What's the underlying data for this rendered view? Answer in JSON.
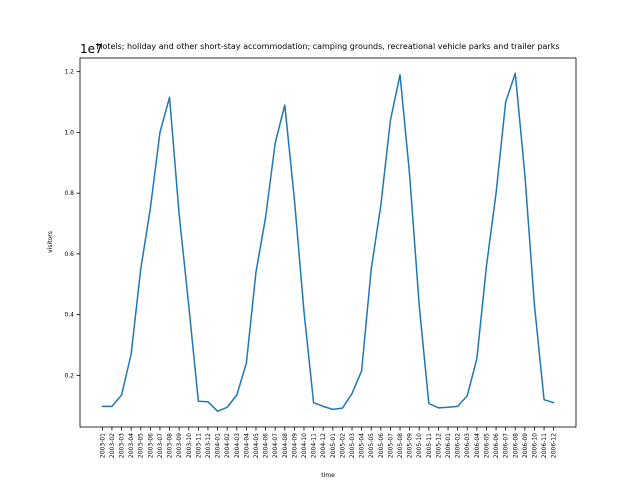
{
  "chart_data": {
    "type": "line",
    "title": "Hotels; holiday and other short-stay accommodation; camping grounds, recreational vehicle parks and trailer parks",
    "xlabel": "time",
    "ylabel": "visitors",
    "offset_label": "1e7",
    "ylim": [
      0.03,
      1.245
    ],
    "yticks": [
      "0.2",
      "0.4",
      "0.6",
      "0.8",
      "1.0",
      "1.2"
    ],
    "grid": false,
    "x": [
      "2003-01",
      "2003-02",
      "2003-03",
      "2003-04",
      "2003-05",
      "2003-06",
      "2003-07",
      "2003-08",
      "2003-09",
      "2003-10",
      "2003-11",
      "2003-12",
      "2004-01",
      "2004-02",
      "2004-03",
      "2004-04",
      "2004-05",
      "2004-06",
      "2004-07",
      "2004-08",
      "2004-09",
      "2004-10",
      "2004-11",
      "2004-12",
      "2005-01",
      "2005-02",
      "2005-03",
      "2005-04",
      "2005-05",
      "2005-06",
      "2005-07",
      "2005-08",
      "2005-09",
      "2005-10",
      "2005-11",
      "2005-12",
      "2006-01",
      "2006-02",
      "2006-03",
      "2006-04",
      "2006-05",
      "2006-06",
      "2006-07",
      "2006-08",
      "2006-09",
      "2006-10",
      "2006-11",
      "2006-12"
    ],
    "series": [
      {
        "color": "#1f77b4",
        "values": [
          0.098,
          0.098,
          0.135,
          0.27,
          0.55,
          0.75,
          1.0,
          1.115,
          0.73,
          0.43,
          0.115,
          0.113,
          0.082,
          0.095,
          0.135,
          0.24,
          0.54,
          0.72,
          0.965,
          1.09,
          0.78,
          0.41,
          0.11,
          0.098,
          0.088,
          0.092,
          0.14,
          0.215,
          0.55,
          0.76,
          1.04,
          1.19,
          0.86,
          0.43,
          0.107,
          0.093,
          0.095,
          0.098,
          0.133,
          0.255,
          0.56,
          0.8,
          1.1,
          1.195,
          0.86,
          0.43,
          0.12,
          0.11
        ]
      }
    ]
  }
}
